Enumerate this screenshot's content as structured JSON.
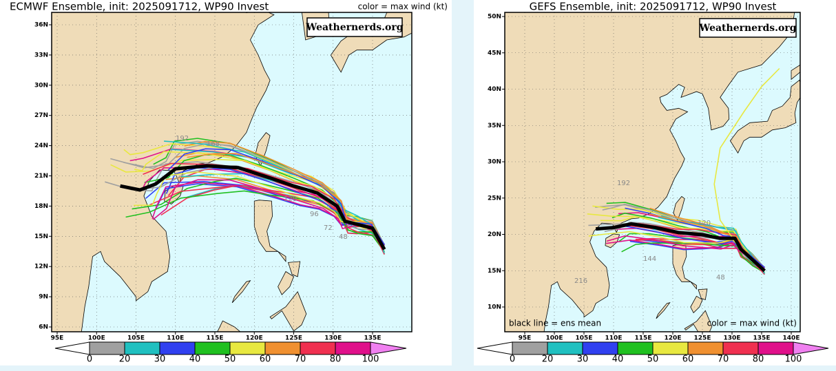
{
  "panels": [
    {
      "title": "ECMWF Ensemble, init: 2025091712, WP90 Invest",
      "legend_note": "color = max wind (kt)",
      "watermark": "Weathernerds.org",
      "lat_labels": [
        "36N",
        "33N",
        "30N",
        "27N",
        "24N",
        "21N",
        "18N",
        "15N",
        "12N",
        "9N",
        "6N"
      ],
      "lon_labels": [
        "95E",
        "100E",
        "105E",
        "110E",
        "115E",
        "120E",
        "125E",
        "130E",
        "135E"
      ],
      "hour_labels": [
        "192",
        "168",
        "120",
        "96",
        "72",
        "48"
      ],
      "colorbar_labels": [
        "0",
        "20",
        "30",
        "40",
        "50",
        "60",
        "70",
        "80",
        "100"
      ]
    },
    {
      "title": "GEFS Ensemble, init: 2025091712, WP90 Invest",
      "mean_note": "black line = ens mean",
      "legend_note": "color = max wind (kt)",
      "watermark": "Weathernerds.org",
      "lat_labels": [
        "50N",
        "45N",
        "40N",
        "35N",
        "30N",
        "25N",
        "20N",
        "15N",
        "10N"
      ],
      "lon_labels": [
        "95E",
        "100E",
        "105E",
        "110E",
        "115E",
        "120E",
        "125E",
        "130E",
        "135E",
        "140E"
      ],
      "hour_labels": [
        "192",
        "120",
        "144",
        "48",
        "216"
      ],
      "colorbar_labels": [
        "0",
        "20",
        "30",
        "40",
        "50",
        "60",
        "70",
        "80",
        "100"
      ]
    }
  ]
}
